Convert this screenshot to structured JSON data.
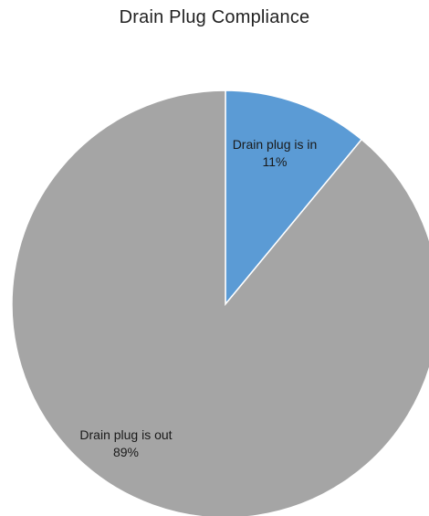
{
  "chart_data": {
    "type": "pie",
    "title": "Drain Plug Compliance",
    "slices": [
      {
        "label": "Drain plug is in",
        "value": 11,
        "value_label": "11%",
        "color": "#5b9bd5"
      },
      {
        "label": "Drain plug is out",
        "value": 89,
        "value_label": "89%",
        "color": "#a5a5a5"
      }
    ],
    "start_angle": "12 o'clock",
    "direction": "clockwise",
    "legend": "none"
  }
}
